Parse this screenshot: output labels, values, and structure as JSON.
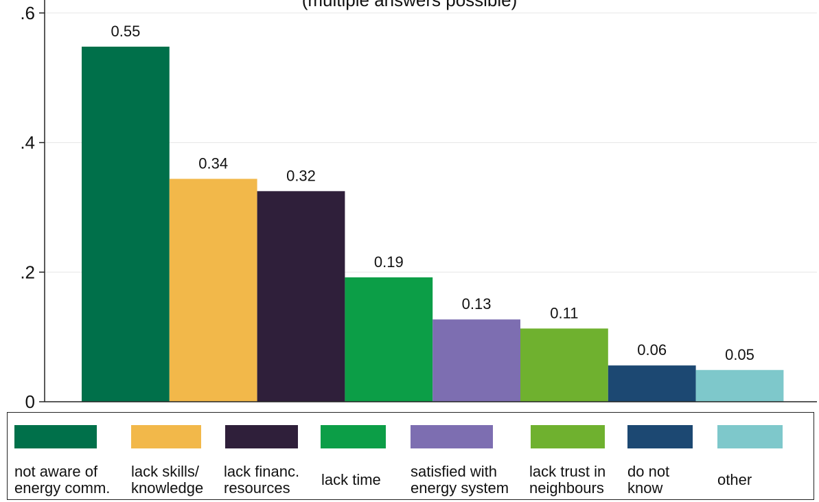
{
  "chart_data": {
    "type": "bar",
    "title": "",
    "subtitle": "(multiple answers possible)",
    "xlabel": "",
    "ylabel": "",
    "ylim": [
      0,
      0.62
    ],
    "yticks": [
      0,
      0.2,
      0.4,
      0.6
    ],
    "ytick_labels": [
      "0",
      ".2",
      ".4",
      ".6"
    ],
    "grid": "horizontal",
    "legend_position": "bottom",
    "categories": [
      "not aware of\nenergy comm.",
      "lack skills/\nknowledge",
      "lack financ.\nresources",
      "lack time",
      "satisfied with\nenergy system",
      "lack trust in\nneighbours",
      "do not\nknow",
      "other"
    ],
    "values": [
      0.548,
      0.344,
      0.325,
      0.192,
      0.127,
      0.113,
      0.056,
      0.049
    ],
    "data_labels": [
      "0.55",
      "0.34",
      "0.32",
      "0.19",
      "0.13",
      "0.11",
      "0.06",
      "0.05"
    ],
    "colors": [
      "#00704a",
      "#f2b84a",
      "#2f1f3a",
      "#0c9e47",
      "#7d6eb1",
      "#6fb12f",
      "#1c4872",
      "#7ec8cb"
    ]
  }
}
